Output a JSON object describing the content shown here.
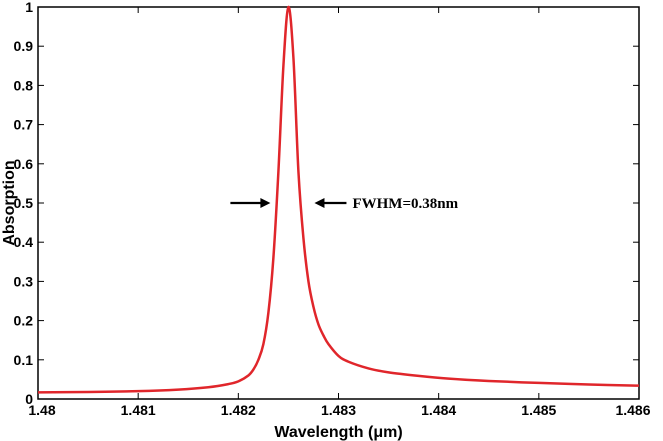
{
  "chart_data": {
    "type": "line",
    "title": "",
    "xlabel": "Wavelength (μm)",
    "ylabel": "Absorption",
    "xlim": [
      1.48,
      1.486
    ],
    "ylim": [
      0,
      1
    ],
    "x_ticks": [
      "1.48",
      "1.481",
      "1.482",
      "1.483",
      "1.484",
      "1.485",
      "1.486"
    ],
    "y_ticks": [
      "0",
      "0.1",
      "0.2",
      "0.3",
      "0.4",
      "0.5",
      "0.6",
      "0.7",
      "0.8",
      "0.9",
      "1"
    ],
    "grid": false,
    "legend": "none",
    "series": [
      {
        "color": "#e0262b",
        "x": [
          1.48,
          1.4805,
          1.481,
          1.4814,
          1.4817,
          1.4819,
          1.482,
          1.4821,
          1.48215,
          1.4822,
          1.48225,
          1.4823,
          1.48235,
          1.4824,
          1.48245,
          1.4825,
          1.48255,
          1.4826,
          1.48265,
          1.4827,
          1.48275,
          1.4828,
          1.48285,
          1.4829,
          1.483,
          1.4831,
          1.4833,
          1.4835,
          1.4838,
          1.4841,
          1.4845,
          1.485,
          1.4855,
          1.486
        ],
        "y": [
          0.017,
          0.018,
          0.02,
          0.024,
          0.03,
          0.038,
          0.045,
          0.06,
          0.075,
          0.1,
          0.14,
          0.22,
          0.36,
          0.58,
          0.85,
          1.0,
          0.87,
          0.58,
          0.41,
          0.3,
          0.235,
          0.19,
          0.162,
          0.14,
          0.11,
          0.095,
          0.078,
          0.068,
          0.059,
          0.052,
          0.046,
          0.041,
          0.037,
          0.034
        ]
      }
    ],
    "annotations": [
      {
        "text": "FWHM=0.38nm",
        "y": 0.5,
        "left_arrow_x": 1.48235,
        "right_arrow_x": 1.48273
      }
    ]
  }
}
